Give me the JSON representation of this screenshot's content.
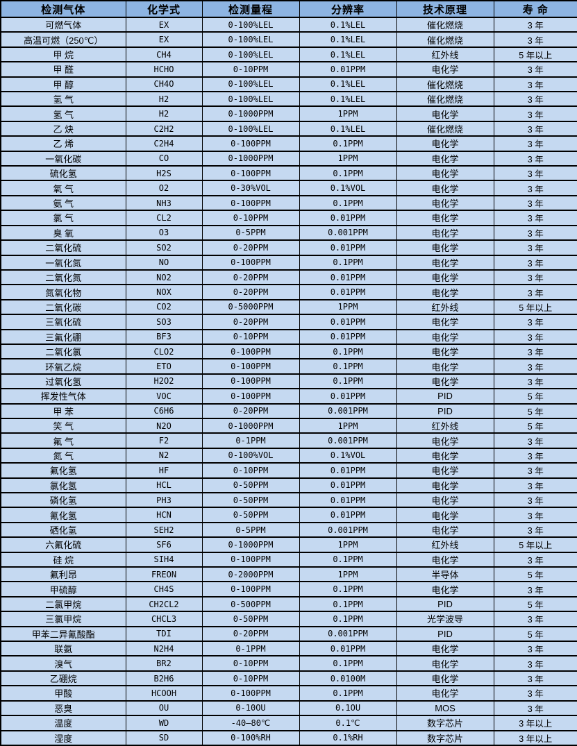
{
  "colors": {
    "header_bg": "#8db4e2",
    "row_bg": "#c5d9f1",
    "border": "#000000",
    "text": "#000000"
  },
  "table": {
    "headers": [
      "检测气体",
      "化学式",
      "检测量程",
      "分辨率",
      "技术原理",
      "寿 命"
    ],
    "rows": [
      [
        "可燃气体",
        "EX",
        "0-100%LEL",
        "0.1%LEL",
        "催化燃烧",
        "3 年"
      ],
      [
        "高温可燃（250℃）",
        "EX",
        "0-100%LEL",
        "0.1%LEL",
        "催化燃烧",
        "3 年"
      ],
      [
        "甲 烷",
        "CH4",
        "0-100%LEL",
        "0.1%LEL",
        "红外线",
        "5 年以上"
      ],
      [
        "甲 醛",
        "HCHO",
        "0-10PPM",
        "0.01PPM",
        "电化学",
        "3 年"
      ],
      [
        "甲 醇",
        "CH4O",
        "0-100%LEL",
        "0.1%LEL",
        "催化燃烧",
        "3 年"
      ],
      [
        "氢 气",
        "H2",
        "0-100%LEL",
        "0.1%LEL",
        "催化燃烧",
        "3 年"
      ],
      [
        "氢 气",
        "H2",
        "0-1000PPM",
        "1PPM",
        "电化学",
        "3 年"
      ],
      [
        "乙 炔",
        "C2H2",
        "0-100%LEL",
        "0.1%LEL",
        "催化燃烧",
        "3 年"
      ],
      [
        "乙 烯",
        "C2H4",
        "0-100PPM",
        "0.1PPM",
        "电化学",
        "3 年"
      ],
      [
        "一氧化碳",
        "CO",
        "0-1000PPM",
        "1PPM",
        "电化学",
        "3 年"
      ],
      [
        "硫化氢",
        "H2S",
        "0-100PPM",
        "0.1PPM",
        "电化学",
        "3 年"
      ],
      [
        "氧 气",
        "O2",
        "0-30%VOL",
        "0.1%VOL",
        "电化学",
        "3 年"
      ],
      [
        "氨 气",
        "NH3",
        "0-100PPM",
        "0.1PPM",
        "电化学",
        "3 年"
      ],
      [
        "氯 气",
        "CL2",
        "0-10PPM",
        "0.01PPM",
        "电化学",
        "3 年"
      ],
      [
        "臭 氧",
        "O3",
        "0-5PPM",
        "0.001PPM",
        "电化学",
        "3 年"
      ],
      [
        "二氧化硫",
        "SO2",
        "0-20PPM",
        "0.01PPM",
        "电化学",
        "3 年"
      ],
      [
        "一氧化氮",
        "NO",
        "0-100PPM",
        "0.1PPM",
        "电化学",
        "3 年"
      ],
      [
        "二氧化氮",
        "NO2",
        "0-20PPM",
        "0.01PPM",
        "电化学",
        "3 年"
      ],
      [
        "氮氧化物",
        "NOX",
        "0-20PPM",
        "0.01PPM",
        "电化学",
        "3 年"
      ],
      [
        "二氧化碳",
        "CO2",
        "0-5000PPM",
        "1PPM",
        "红外线",
        "5 年以上"
      ],
      [
        "三氧化硫",
        "SO3",
        "0-20PPM",
        "0.01PPM",
        "电化学",
        "3 年"
      ],
      [
        "三氟化硼",
        "BF3",
        "0-10PPM",
        "0.01PPM",
        "电化学",
        "3 年"
      ],
      [
        "二氧化氯",
        "CLO2",
        "0-100PPM",
        "0.1PPM",
        "电化学",
        "3 年"
      ],
      [
        "环氧乙烷",
        "ETO",
        "0-100PPM",
        "0.1PPM",
        "电化学",
        "3 年"
      ],
      [
        "过氧化氢",
        "H2O2",
        "0-100PPM",
        "0.1PPM",
        "电化学",
        "3 年"
      ],
      [
        "挥发性气体",
        "VOC",
        "0-100PPM",
        "0.01PPM",
        "PID",
        "5 年"
      ],
      [
        "甲 苯",
        "C6H6",
        "0-20PPM",
        "0.001PPM",
        "PID",
        "5 年"
      ],
      [
        "笑 气",
        "N2O",
        "0-1000PPM",
        "1PPM",
        "红外线",
        "5 年"
      ],
      [
        "氟 气",
        "F2",
        "0-1PPM",
        "0.001PPM",
        "电化学",
        "3 年"
      ],
      [
        "氮 气",
        "N2",
        "0-100%VOL",
        "0.1%VOL",
        "电化学",
        "3 年"
      ],
      [
        "氟化氢",
        "HF",
        "0-10PPM",
        "0.01PPM",
        "电化学",
        "3 年"
      ],
      [
        "氯化氢",
        "HCL",
        "0-50PPM",
        "0.01PPM",
        "电化学",
        "3 年"
      ],
      [
        "磷化氢",
        "PH3",
        "0-50PPM",
        "0.01PPM",
        "电化学",
        "3 年"
      ],
      [
        "氰化氢",
        "HCN",
        "0-50PPM",
        "0.01PPM",
        "电化学",
        "3 年"
      ],
      [
        "硒化氢",
        "SEH2",
        "0-5PPM",
        "0.001PPM",
        "电化学",
        "3 年"
      ],
      [
        "六氟化硫",
        "SF6",
        "0-1000PPM",
        "1PPM",
        "红外线",
        "5 年以上"
      ],
      [
        "硅 烷",
        "SIH4",
        "0-100PPM",
        "0.1PPM",
        "电化学",
        "3 年"
      ],
      [
        "氟利昂",
        "FREON",
        "0-2000PPM",
        "1PPM",
        "半导体",
        "5 年"
      ],
      [
        "甲硫醇",
        "CH4S",
        "0-100PPM",
        "0.1PPM",
        "电化学",
        "3 年"
      ],
      [
        "二氯甲烷",
        "CH2CL2",
        "0-500PPM",
        "0.1PPM",
        "PID",
        "5 年"
      ],
      [
        "三氯甲烷",
        "CHCL3",
        "0-50PPM",
        "0.1PPM",
        "光学波导",
        "3 年"
      ],
      [
        "甲苯二异氰酸酯",
        "TDI",
        "0-20PPM",
        "0.001PPM",
        "PID",
        "5 年"
      ],
      [
        "联氨",
        "N2H4",
        "0-1PPM",
        "0.01PPM",
        "电化学",
        "3 年"
      ],
      [
        "溴气",
        "BR2",
        "0-10PPM",
        "0.1PPM",
        "电化学",
        "3 年"
      ],
      [
        "乙硼烷",
        "B2H6",
        "0-10PPM",
        "0.0100M",
        "电化学",
        "3 年"
      ],
      [
        "甲酸",
        "HCOOH",
        "0-100PPM",
        "0.1PPM",
        "电化学",
        "3 年"
      ],
      [
        "恶臭",
        "OU",
        "0-10OU",
        "0.1OU",
        "MOS",
        "3 年"
      ],
      [
        "温度",
        "WD",
        "-40—80℃",
        "0.1℃",
        "数字芯片",
        "3 年以上"
      ],
      [
        "湿度",
        "SD",
        "0-100%RH",
        "0.1%RH",
        "数字芯片",
        "3 年以上"
      ]
    ]
  }
}
